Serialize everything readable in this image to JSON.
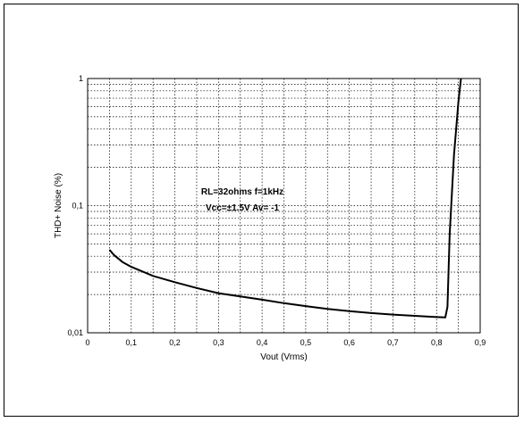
{
  "chart_data": {
    "type": "line",
    "xlabel": "Vout (Vrms)",
    "ylabel": "THD+ Noise (%)",
    "xlim": [
      0,
      0.9
    ],
    "ylim": [
      0.01,
      1
    ],
    "y_scale": "log",
    "grid": true,
    "x_ticks": [
      "0",
      "0,1",
      "0,2",
      "0,3",
      "0,4",
      "0,5",
      "0,6",
      "0,7",
      "0,8",
      "0,9"
    ],
    "y_ticks": [
      "0,01",
      "0,1",
      "1"
    ],
    "annotations": [
      "RL=32ohms  f=1kHz",
      "Vcc=±1.5V  Av= -1"
    ],
    "series": [
      {
        "x": [
          0.05,
          0.06,
          0.08,
          0.1,
          0.15,
          0.2,
          0.25,
          0.3,
          0.35,
          0.4,
          0.45,
          0.5,
          0.55,
          0.6,
          0.65,
          0.7,
          0.75,
          0.8,
          0.82,
          0.825,
          0.83,
          0.84,
          0.85,
          0.856
        ],
        "y": [
          0.045,
          0.041,
          0.036,
          0.033,
          0.028,
          0.025,
          0.0225,
          0.0205,
          0.0193,
          0.0182,
          0.0171,
          0.0162,
          0.0154,
          0.0148,
          0.0143,
          0.0139,
          0.0136,
          0.0133,
          0.0132,
          0.016,
          0.06,
          0.25,
          0.65,
          1.0
        ]
      }
    ]
  }
}
